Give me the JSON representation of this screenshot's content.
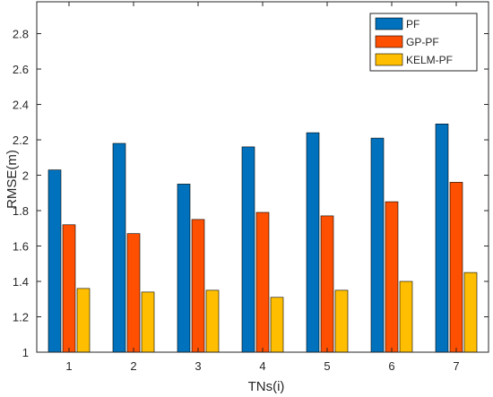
{
  "chart_data": {
    "type": "bar",
    "xlabel": "TNs(i)",
    "ylabel": "RMSE(m)",
    "ylim": [
      1,
      2.98
    ],
    "yticks": [
      "1",
      "1.2",
      "1.4",
      "1.6",
      "1.8",
      "2",
      "2.2",
      "2.4",
      "2.6",
      "2.8"
    ],
    "categories": [
      "1",
      "2",
      "3",
      "4",
      "5",
      "6",
      "7"
    ],
    "series": [
      {
        "name": "PF",
        "color": "#0072BD",
        "values": [
          2.03,
          2.18,
          1.95,
          2.16,
          2.24,
          2.21,
          2.29
        ]
      },
      {
        "name": "GP-PF",
        "color": "#FF4F00",
        "values": [
          1.72,
          1.67,
          1.75,
          1.79,
          1.77,
          1.85,
          1.96
        ]
      },
      {
        "name": "KELM-PF",
        "color": "#FFBF00",
        "values": [
          1.36,
          1.34,
          1.35,
          1.31,
          1.35,
          1.4,
          1.45
        ]
      }
    ],
    "legend": "top-right",
    "grid": false
  }
}
